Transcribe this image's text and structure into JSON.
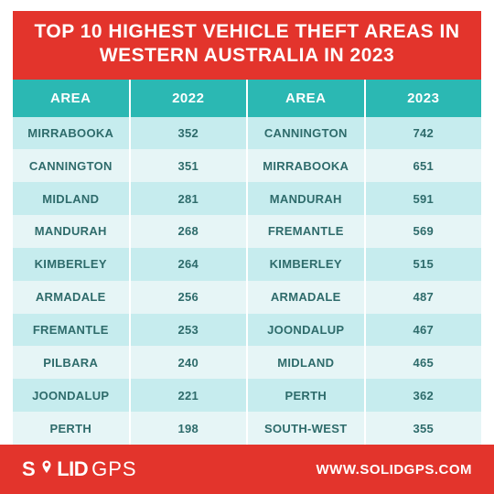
{
  "title": "TOP 10 HIGHEST VEHICLE THEFT AREAS IN WESTERN AUSTRALIA IN 2023",
  "columns": [
    "AREA",
    "2022",
    "AREA",
    "2023"
  ],
  "rows": [
    [
      "MIRRABOOKA",
      "352",
      "CANNINGTON",
      "742"
    ],
    [
      "CANNINGTON",
      "351",
      "MIRRABOOKA",
      "651"
    ],
    [
      "MIDLAND",
      "281",
      "MANDURAH",
      "591"
    ],
    [
      "MANDURAH",
      "268",
      "FREMANTLE",
      "569"
    ],
    [
      "KIMBERLEY",
      "264",
      "KIMBERLEY",
      "515"
    ],
    [
      "ARMADALE",
      "256",
      "ARMADALE",
      "487"
    ],
    [
      "FREMANTLE",
      "253",
      "JOONDALUP",
      "467"
    ],
    [
      "PILBARA",
      "240",
      "MIDLAND",
      "465"
    ],
    [
      "JOONDALUP",
      "221",
      "PERTH",
      "362"
    ],
    [
      "PERTH",
      "198",
      "SOUTH-WEST",
      "355"
    ]
  ],
  "logo": {
    "part1": "S",
    "part2": "LID",
    "part3": "GPS"
  },
  "url": "WWW.SOLIDGPS.COM",
  "colors": {
    "header_bg": "#e3342c",
    "table_header_bg": "#2bb8b3",
    "row_even_bg": "#c6ecee",
    "row_odd_bg": "#e6f5f6",
    "text_light": "#ffffff",
    "cell_text": "#2e6b6b"
  },
  "typography": {
    "title_fontsize": 21,
    "header_fontsize": 15,
    "cell_fontsize": 13,
    "url_fontsize": 15,
    "logo_fontsize": 22
  },
  "table": {
    "type": "table",
    "column_count": 4,
    "row_count": 10,
    "cell_align": "center",
    "border_color": "#ffffff",
    "border_width": 2
  }
}
